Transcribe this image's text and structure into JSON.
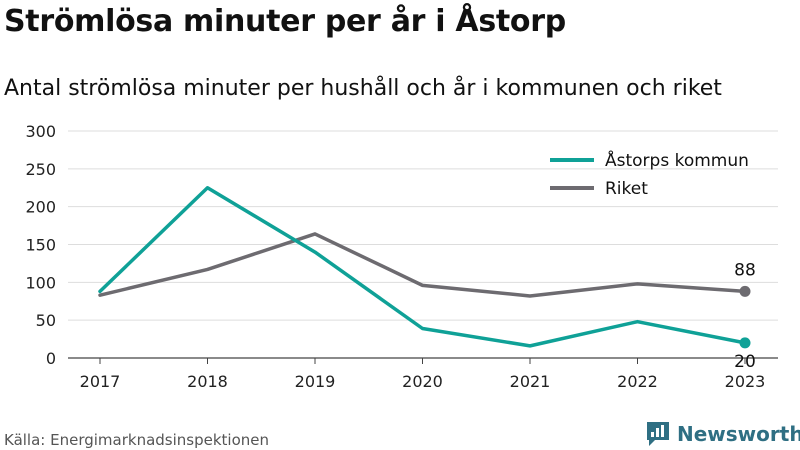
{
  "title": "Strömlösa minuter per år i Åstorp",
  "subtitle": "Antal strömlösa minuter per hushåll och år i kommunen och riket",
  "source": "Källa: Energimarknadsinspektionen",
  "brand": {
    "name": "Newsworthy",
    "icon": "newsworthy-logo-icon",
    "color": "#2f6f83"
  },
  "chart_data": {
    "type": "line",
    "categories": [
      "2017",
      "2018",
      "2019",
      "2020",
      "2021",
      "2022",
      "2023"
    ],
    "y_ticks": [
      0,
      50,
      100,
      150,
      200,
      250,
      300
    ],
    "ylim": [
      0,
      300
    ],
    "grid": true,
    "legend_position": "top-right",
    "series": [
      {
        "name": "Åstorps kommun",
        "color": "#0fa197",
        "values": [
          88,
          225,
          140,
          39,
          16,
          48,
          20
        ],
        "end_label": "20"
      },
      {
        "name": "Riket",
        "color": "#6d6b70",
        "values": [
          83,
          117,
          164,
          96,
          82,
          98,
          88
        ],
        "end_label": "88"
      }
    ]
  }
}
